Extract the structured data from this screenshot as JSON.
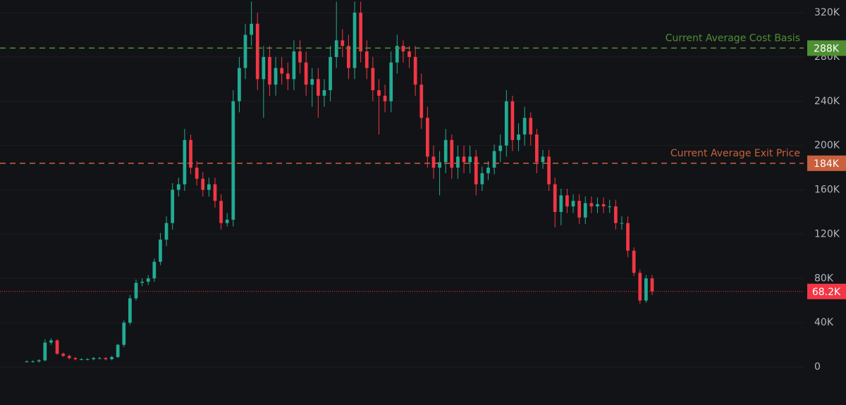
{
  "chart_data": {
    "type": "candlestick",
    "open": [
      5000,
      5000,
      5000,
      6000,
      22000,
      24000,
      12000,
      10000,
      8000,
      7000,
      7000,
      7000,
      8000,
      8000,
      7000,
      9000,
      20000,
      40000,
      62000,
      76000,
      77000,
      80000,
      95000,
      115000,
      130000,
      160000,
      165000,
      205000,
      180000,
      170000,
      160000,
      165000,
      150000,
      130000,
      133000,
      240000,
      270000,
      300000,
      310000,
      260000,
      280000,
      255000,
      270000,
      265000,
      260000,
      285000,
      275000,
      255000,
      260000,
      245000,
      250000,
      280000,
      295000,
      290000,
      270000,
      320000,
      285000,
      270000,
      250000,
      245000,
      240000,
      275000,
      290000,
      285000,
      280000,
      255000,
      225000,
      190000,
      180000,
      185000,
      205000,
      180000,
      190000,
      185000,
      190000,
      165000,
      175000,
      180000,
      195000,
      200000,
      240000,
      205000,
      210000,
      225000,
      210000,
      185000,
      190000,
      165000,
      140000,
      155000,
      145000,
      150000,
      135000,
      148000,
      145000,
      147000,
      145000,
      145000,
      130000,
      130000,
      105000,
      85000,
      60000,
      80000
    ],
    "high": [
      6000,
      6000,
      7000,
      25000,
      26000,
      25000,
      13000,
      11000,
      9000,
      8000,
      8000,
      9000,
      9000,
      9000,
      10000,
      21000,
      42000,
      65000,
      79000,
      80000,
      83000,
      98000,
      121000,
      136000,
      166000,
      171000,
      215000,
      210000,
      186000,
      176000,
      171000,
      171000,
      156000,
      139000,
      250000,
      280000,
      310000,
      330000,
      320000,
      290000,
      290000,
      280000,
      280000,
      275000,
      295000,
      295000,
      285000,
      270000,
      270000,
      260000,
      290000,
      330000,
      305000,
      300000,
      330000,
      330000,
      295000,
      280000,
      260000,
      255000,
      285000,
      300000,
      295000,
      290000,
      290000,
      265000,
      235000,
      200000,
      195000,
      215000,
      210000,
      200000,
      200000,
      200000,
      196000,
      181000,
      186000,
      201000,
      210000,
      250000,
      245000,
      220000,
      235000,
      230000,
      215000,
      196000,
      196000,
      171000,
      161000,
      161000,
      156000,
      156000,
      154000,
      154000,
      153000,
      153000,
      151000,
      151000,
      136000,
      136000,
      108000,
      88000,
      83000,
      83000
    ],
    "low": [
      4000,
      4000,
      4000,
      5000,
      20000,
      11000,
      9000,
      7000,
      6000,
      6000,
      6000,
      6000,
      7000,
      6000,
      6000,
      8000,
      18000,
      38000,
      60000,
      73000,
      74000,
      77000,
      92000,
      109000,
      124000,
      154000,
      159000,
      174000,
      164000,
      154000,
      154000,
      144000,
      124000,
      127000,
      127000,
      230000,
      260000,
      290000,
      250000,
      225000,
      245000,
      245000,
      255000,
      250000,
      250000,
      265000,
      245000,
      235000,
      225000,
      235000,
      240000,
      270000,
      280000,
      260000,
      260000,
      275000,
      260000,
      240000,
      210000,
      230000,
      230000,
      265000,
      275000,
      270000,
      245000,
      215000,
      180000,
      170000,
      155000,
      175000,
      170000,
      170000,
      175000,
      175000,
      155000,
      159000,
      169000,
      174000,
      185000,
      190000,
      195000,
      195000,
      200000,
      200000,
      175000,
      179000,
      159000,
      126000,
      128000,
      139000,
      139000,
      129000,
      129000,
      139000,
      139000,
      139000,
      139000,
      124000,
      124000,
      99000,
      82000,
      57000,
      58000,
      65000
    ],
    "close": [
      5000,
      5000,
      6000,
      22000,
      24000,
      12000,
      10000,
      8000,
      7000,
      7000,
      7000,
      8000,
      8000,
      7000,
      9000,
      20000,
      40000,
      62000,
      76000,
      77000,
      80000,
      95000,
      115000,
      130000,
      160000,
      165000,
      205000,
      180000,
      170000,
      160000,
      165000,
      150000,
      130000,
      133000,
      240000,
      270000,
      300000,
      310000,
      260000,
      280000,
      255000,
      270000,
      265000,
      260000,
      285000,
      275000,
      255000,
      260000,
      245000,
      250000,
      280000,
      295000,
      290000,
      270000,
      320000,
      285000,
      270000,
      250000,
      245000,
      240000,
      275000,
      290000,
      285000,
      280000,
      255000,
      225000,
      190000,
      180000,
      185000,
      205000,
      180000,
      190000,
      185000,
      190000,
      165000,
      175000,
      180000,
      195000,
      200000,
      240000,
      205000,
      210000,
      225000,
      210000,
      185000,
      190000,
      165000,
      140000,
      155000,
      145000,
      150000,
      135000,
      148000,
      145000,
      147000,
      145000,
      145000,
      130000,
      130000,
      105000,
      85000,
      60000,
      80000,
      68200
    ],
    "up_color": "#22ab94",
    "down_color": "#f23645",
    "ylim": [
      -34350,
      331450
    ],
    "yticks": [
      0,
      {
        "value": 40000,
        "label": "40K"
      },
      {
        "value": 80000,
        "label": "80K"
      },
      {
        "value": 120000,
        "label": "120K"
      },
      {
        "value": 160000,
        "label": "160K"
      },
      {
        "value": 200000,
        "label": "200K"
      },
      {
        "value": 240000,
        "label": "240K"
      },
      {
        "value": 280000,
        "label": "280K"
      },
      {
        "value": 320000,
        "label": "320K"
      }
    ],
    "grid": true,
    "reference_lines": [
      {
        "label": "Current Average Cost Basis",
        "value": 288000,
        "value_label": "288K",
        "color": "#4e8f33"
      },
      {
        "label": "Current Average Exit Price",
        "value": 184000,
        "value_label": "184K",
        "color": "#c9603e"
      }
    ],
    "last_price": {
      "value": 68200,
      "label": "68.2K",
      "color": "#f23645"
    }
  }
}
